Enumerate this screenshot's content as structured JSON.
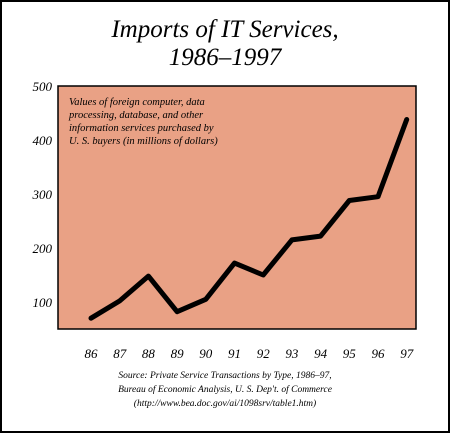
{
  "chart_data": {
    "type": "line",
    "title": [
      "Imports of IT Services,",
      "1986–1997"
    ],
    "annotation": [
      "Values of foreign computer, data",
      "processing, database, and other",
      "information services purchased by",
      "U. S. buyers (in millions of dollars)"
    ],
    "categories": [
      "86",
      "87",
      "88",
      "89",
      "90",
      "91",
      "92",
      "93",
      "94",
      "95",
      "96",
      "97"
    ],
    "values": [
      70,
      102,
      148,
      82,
      105,
      172,
      150,
      215,
      222,
      288,
      295,
      438
    ],
    "yticks": [
      "100",
      "200",
      "300",
      "400",
      "500"
    ],
    "ylim": [
      50,
      500
    ],
    "grid": false,
    "plot_color": "#e9a185",
    "line_color": "#000000",
    "source": [
      "Source: Private Service Transactions by Type, 1986–97,",
      "Bureau of Economic Analysis, U. S. Dep't. of Commerce",
      "(http://www.bea.doc.gov/ai/1098srv/table1.htm)"
    ]
  }
}
